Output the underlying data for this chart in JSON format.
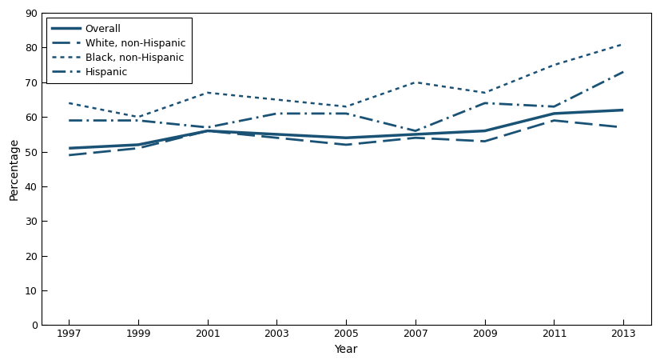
{
  "years": [
    1997,
    1999,
    2001,
    2003,
    2005,
    2007,
    2009,
    2011,
    2013
  ],
  "overall": [
    51,
    52,
    56,
    55,
    54,
    55,
    56,
    61,
    62
  ],
  "white": [
    49,
    51,
    56,
    54,
    52,
    54,
    53,
    59,
    57
  ],
  "black": [
    64,
    60,
    67,
    65,
    63,
    70,
    67,
    75,
    81
  ],
  "hispanic": [
    59,
    59,
    57,
    61,
    61,
    56,
    64,
    63,
    73
  ],
  "color": "#1a5276",
  "xlabel": "Year",
  "ylabel": "Percentage",
  "ylim": [
    0,
    90
  ],
  "yticks": [
    0,
    10,
    20,
    30,
    40,
    50,
    60,
    70,
    80,
    90
  ],
  "xticks": [
    1997,
    1999,
    2001,
    2003,
    2005,
    2007,
    2009,
    2011,
    2013
  ],
  "legend_labels": [
    "Overall",
    "White, non-Hispanic",
    "Black, non-Hispanic",
    "Hispanic"
  ]
}
